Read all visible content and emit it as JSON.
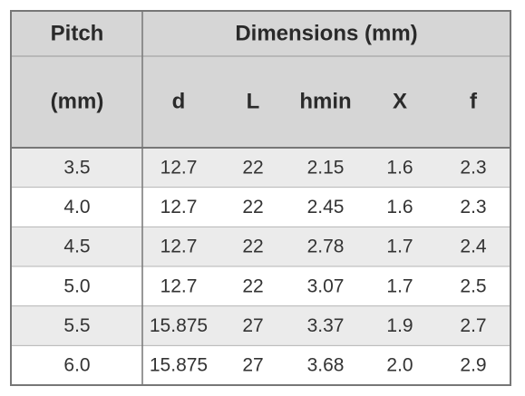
{
  "header": {
    "row1": [
      "Pitch",
      "Dimensions (mm)"
    ],
    "row2": [
      "(mm)",
      "d",
      "L",
      "hmin",
      "X",
      "f"
    ]
  },
  "table": {
    "rows": [
      [
        "3.5",
        "12.7",
        "22",
        "2.15",
        "1.6",
        "2.3"
      ],
      [
        "4.0",
        "12.7",
        "22",
        "2.45",
        "1.6",
        "2.3"
      ],
      [
        "4.5",
        "12.7",
        "22",
        "2.78",
        "1.7",
        "2.4"
      ],
      [
        "5.0",
        "12.7",
        "22",
        "3.07",
        "1.7",
        "2.5"
      ],
      [
        "5.5",
        "15.875",
        "27",
        "3.37",
        "1.9",
        "2.7"
      ],
      [
        "6.0",
        "15.875",
        "27",
        "3.68",
        "2.0",
        "2.9"
      ]
    ]
  }
}
